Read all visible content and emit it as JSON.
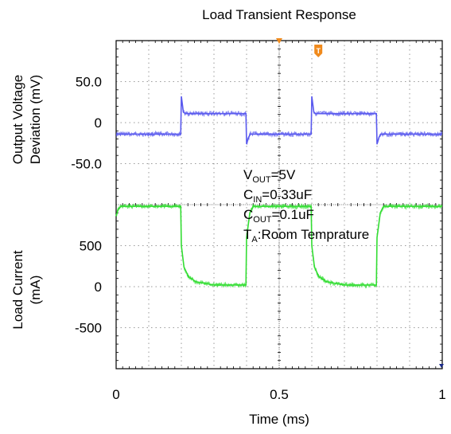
{
  "chart_data": {
    "type": "line",
    "title": "Load Transient Response",
    "xlabel": "Time (ms)",
    "x_ticks": [
      "0",
      "0.5",
      "1"
    ],
    "xlim": [
      0,
      1
    ],
    "panels": [
      {
        "ylabel_lines": [
          "Output Voltage",
          "Deviation (mV)"
        ],
        "y_ticks": [
          "50.0",
          "0",
          "-50.0"
        ],
        "ylim": [
          -100,
          100
        ],
        "color": "#5a5aee",
        "series": {
          "x": [
            0,
            0.198,
            0.2,
            0.206,
            0.212,
            0.398,
            0.4,
            0.406,
            0.412,
            0.598,
            0.6,
            0.606,
            0.612,
            0.798,
            0.8,
            0.806,
            0.812,
            1.0
          ],
          "y": [
            -14,
            -14,
            32,
            13,
            11,
            11,
            -26,
            -18,
            -14,
            -14,
            32,
            13,
            11,
            11,
            -26,
            -18,
            -14,
            -14
          ]
        }
      },
      {
        "ylabel_lines": [
          "Load Current",
          "(mA)"
        ],
        "y_ticks": [
          "500",
          "0",
          "-500"
        ],
        "ylim": [
          -500,
          500
        ],
        "color": "#33dd33",
        "series": {
          "x": [
            0,
            0.006,
            0.015,
            0.198,
            0.2,
            0.208,
            0.222,
            0.245,
            0.3,
            0.398,
            0.4,
            0.41,
            0.42,
            0.598,
            0.6,
            0.608,
            0.622,
            0.645,
            0.7,
            0.798,
            0.8,
            0.81,
            0.82,
            1.0
          ],
          "y": [
            430,
            470,
            490,
            490,
            250,
            120,
            60,
            30,
            10,
            10,
            300,
            450,
            490,
            490,
            250,
            120,
            60,
            30,
            10,
            10,
            300,
            450,
            490,
            490
          ]
        }
      }
    ],
    "annotations": [
      {
        "main": "V",
        "sub": "OUT",
        "rest": "=5V"
      },
      {
        "main": "C",
        "sub": "IN",
        "rest": "=0.33uF"
      },
      {
        "main": "C",
        "sub": "OUT",
        "rest": "=0.1uF"
      },
      {
        "main": "T",
        "sub": "A",
        "rest": ":Room Temprature"
      }
    ],
    "trigger_marker": "T",
    "grid": true
  }
}
